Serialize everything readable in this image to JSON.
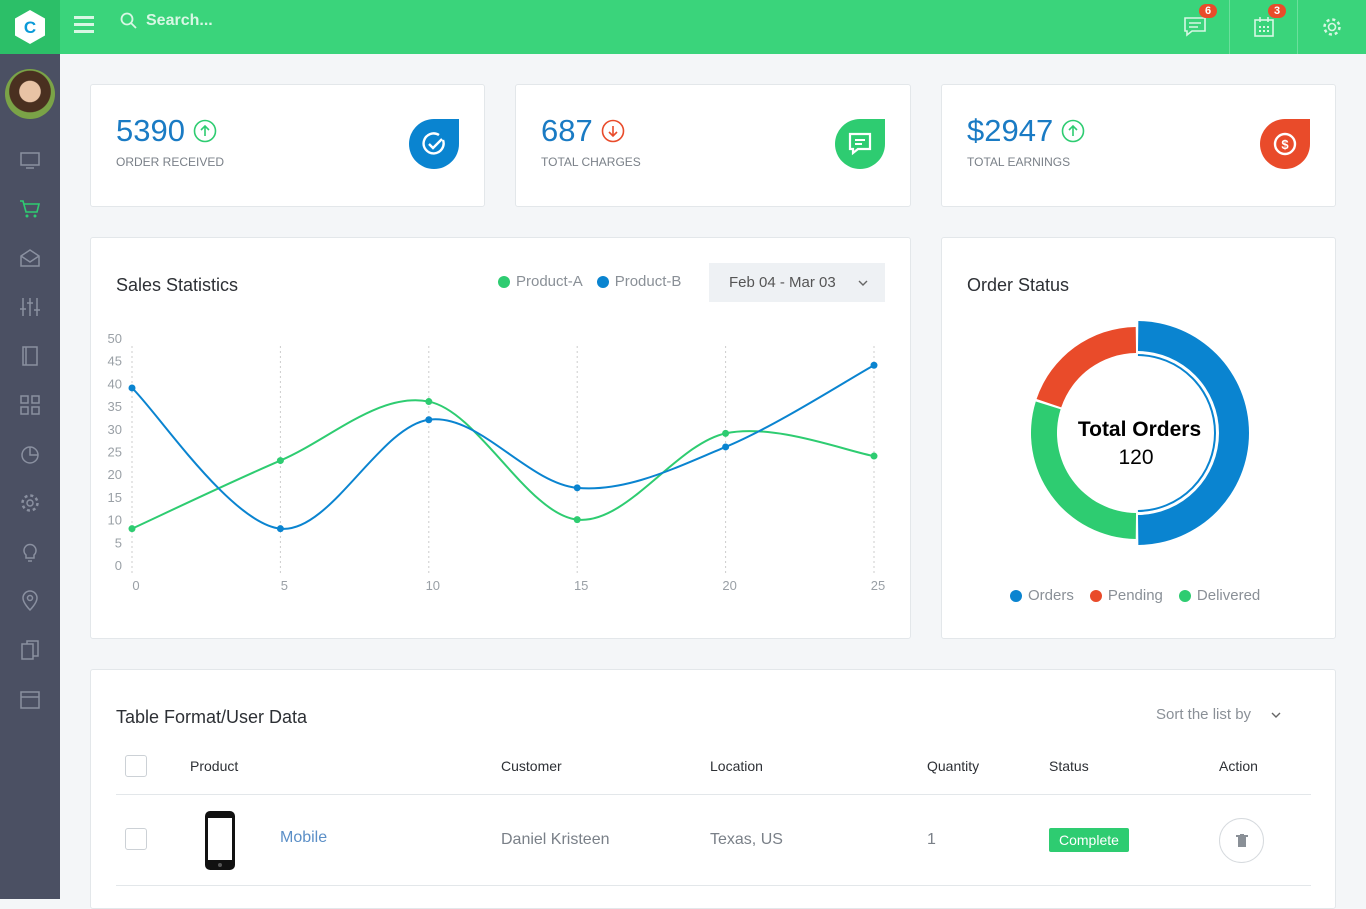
{
  "header": {
    "search_placeholder": "Search...",
    "messages_badge": "6",
    "calendar_badge": "3",
    "logo_letter": "C"
  },
  "sidebar": {
    "items": [
      "monitor",
      "cart",
      "mail",
      "sliders",
      "notebook",
      "grid",
      "pie",
      "settings",
      "bulb",
      "location",
      "copy",
      "calendar"
    ],
    "active": "cart"
  },
  "stats": [
    {
      "value": "5390",
      "label": "ORDER RECEIVED",
      "trend": "up",
      "icon": "check-circle-icon",
      "color": "#0a84d0"
    },
    {
      "value": "687",
      "label": "TOTAL CHARGES",
      "trend": "down",
      "icon": "message-icon",
      "color": "#2ecc71"
    },
    {
      "value": "$2947",
      "label": "TOTAL EARNINGS",
      "trend": "up",
      "icon": "dollar-icon",
      "color": "#e94b2a"
    }
  ],
  "sales": {
    "title": "Sales Statistics",
    "date_range": "Feb 04 - Mar 03"
  },
  "chart_data": {
    "type": "line",
    "grid": "vertical dashed",
    "legend": "top-right",
    "x": [
      0,
      5,
      10,
      15,
      20,
      25
    ],
    "xticks": [
      "0",
      "5",
      "10",
      "15",
      "20",
      "25"
    ],
    "yticks": [
      "0",
      "5",
      "10",
      "15",
      "20",
      "25",
      "30",
      "35",
      "40",
      "45",
      "50"
    ],
    "ylim": [
      0,
      50
    ],
    "xlim": [
      0,
      25
    ],
    "series": [
      {
        "name": "Product-A",
        "color": "#2ecc71",
        "values": [
          8,
          23,
          36,
          10,
          29,
          24
        ]
      },
      {
        "name": "Product-B",
        "color": "#0a84d0",
        "values": [
          39,
          8,
          32,
          17,
          26,
          44
        ]
      }
    ]
  },
  "order_status": {
    "title": "Order Status",
    "center_label": "Total Orders",
    "center_value": "120",
    "slices": [
      {
        "name": "Orders",
        "value": 60,
        "color": "#0a84d0"
      },
      {
        "name": "Delivered",
        "value": 36,
        "color": "#2ecc71"
      },
      {
        "name": "Pending",
        "value": 24,
        "color": "#e94b2a"
      }
    ],
    "legend": [
      "Orders",
      "Pending",
      "Delivered"
    ]
  },
  "table": {
    "title": "Table Format/User Data",
    "sort_label": "Sort the list by",
    "columns": [
      "Product",
      "Customer",
      "Location",
      "Quantity",
      "Status",
      "Action"
    ],
    "rows": [
      {
        "product": "Mobile",
        "customer": "Daniel Kristeen",
        "location": "Texas, US",
        "quantity": "1",
        "status": "Complete"
      }
    ]
  }
}
